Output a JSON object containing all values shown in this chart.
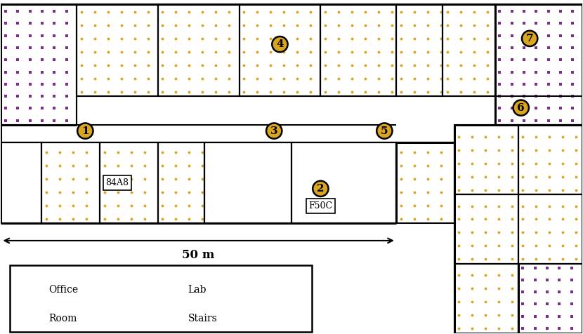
{
  "fig_width": 8.3,
  "fig_height": 4.76,
  "dpi": 100,
  "bg_color": "#ffffff",
  "office_dot_color": "#DAA520",
  "room_dot_color": "#7B2D8B",
  "lab_line_color": "#4472C4",
  "stairs_line_color": "#E05A1A",
  "node_fill_color": "#DAA520",
  "wall_color": "#000000",
  "node_labels": [
    "1",
    "2",
    "3",
    "4",
    "5",
    "6",
    "7"
  ],
  "label_84A8": "84A8",
  "label_F50C": "F50C",
  "scale_text": "50 m",
  "legend_office": "Office",
  "legend_lab": "Lab",
  "legend_room": "Room",
  "legend_stairs": "Stairs",
  "xlim": [
    0,
    100
  ],
  "ylim": [
    0,
    57.5
  ]
}
